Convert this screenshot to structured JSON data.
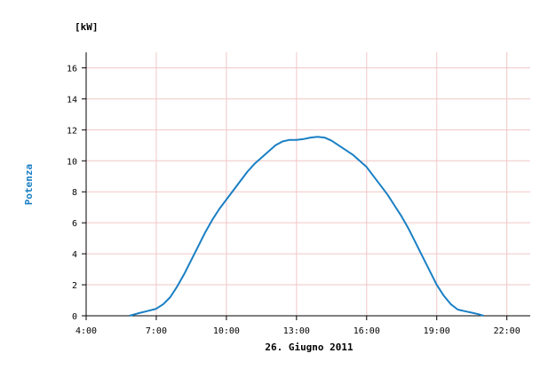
{
  "chart_data": {
    "type": "line",
    "unit_label": "[kW]",
    "ylabel": "Potenza",
    "xlabel": "26. Giugno 2011",
    "xlim": [
      4.0,
      23.0
    ],
    "ylim": [
      0,
      17
    ],
    "y_ticks": [
      0,
      2,
      4,
      6,
      8,
      10,
      12,
      14,
      16
    ],
    "x_ticks": [
      {
        "value": 4,
        "label": "4:00"
      },
      {
        "value": 7,
        "label": "7:00"
      },
      {
        "value": 10,
        "label": "10:00"
      },
      {
        "value": 13,
        "label": "13:00"
      },
      {
        "value": 16,
        "label": "16:00"
      },
      {
        "value": 19,
        "label": "19:00"
      },
      {
        "value": 22,
        "label": "22:00"
      }
    ],
    "grid": true,
    "colors": {
      "line": "#1a7fc4",
      "grid": "#f2c6c6",
      "axis": "#000000"
    },
    "series": [
      {
        "x": [
          5.85,
          6.2,
          6.6,
          7.0,
          7.3,
          7.6,
          7.9,
          8.2,
          8.5,
          8.8,
          9.1,
          9.4,
          9.7,
          10.0,
          10.3,
          10.6,
          10.9,
          11.2,
          11.5,
          11.8,
          12.1,
          12.4,
          12.7,
          13.0,
          13.3,
          13.6,
          13.9,
          14.2,
          14.5,
          14.8,
          15.1,
          15.4,
          15.7,
          16.0,
          16.3,
          16.6,
          16.9,
          17.2,
          17.5,
          17.8,
          18.1,
          18.4,
          18.7,
          19.0,
          19.3,
          19.6,
          19.9,
          20.2,
          20.5,
          20.8,
          21.0
        ],
        "y": [
          0.0,
          0.15,
          0.3,
          0.45,
          0.75,
          1.2,
          1.9,
          2.7,
          3.6,
          4.5,
          5.4,
          6.2,
          6.9,
          7.5,
          8.1,
          8.7,
          9.3,
          9.8,
          10.2,
          10.6,
          11.0,
          11.25,
          11.35,
          11.35,
          11.4,
          11.5,
          11.55,
          11.5,
          11.3,
          11.0,
          10.7,
          10.4,
          10.0,
          9.6,
          9.0,
          8.4,
          7.8,
          7.1,
          6.4,
          5.6,
          4.7,
          3.8,
          2.9,
          2.0,
          1.3,
          0.75,
          0.4,
          0.3,
          0.2,
          0.1,
          0.0
        ]
      }
    ]
  }
}
